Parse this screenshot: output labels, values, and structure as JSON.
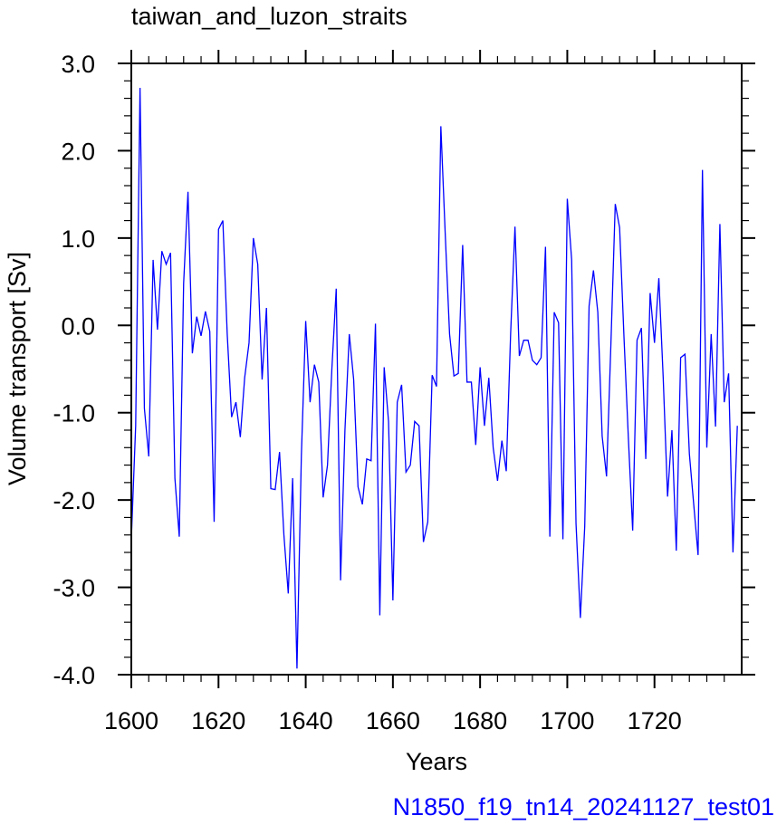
{
  "chart_data": {
    "type": "line",
    "title": "taiwan_and_luzon_straits",
    "xlabel": "Years",
    "ylabel": "Volume transport [Sv]",
    "caption": "N1850_f19_tn14_20241127_test01",
    "xlim": [
      1600,
      1740
    ],
    "ylim": [
      -4.0,
      3.0
    ],
    "x_ticks": [
      1600,
      1620,
      1640,
      1660,
      1680,
      1700,
      1720
    ],
    "x_tick_labels": [
      "1600",
      "1620",
      "1640",
      "1660",
      "1680",
      "1700",
      "1720"
    ],
    "y_ticks": [
      -4.0,
      -3.0,
      -2.0,
      -1.0,
      0.0,
      1.0,
      2.0,
      3.0
    ],
    "y_tick_labels": [
      "-4.0",
      "-3.0",
      "-2.0",
      "-1.0",
      "0.0",
      "1.0",
      "2.0",
      "3.0"
    ],
    "grid": false,
    "series": [
      {
        "color": "#0000ff",
        "x": [
          1600,
          1601,
          1602,
          1603,
          1604,
          1605,
          1606,
          1607,
          1608,
          1609,
          1610,
          1611,
          1612,
          1613,
          1614,
          1615,
          1616,
          1617,
          1618,
          1619,
          1620,
          1621,
          1622,
          1623,
          1624,
          1625,
          1626,
          1627,
          1628,
          1629,
          1630,
          1631,
          1632,
          1633,
          1634,
          1635,
          1636,
          1637,
          1638,
          1639,
          1640,
          1641,
          1642,
          1643,
          1644,
          1645,
          1646,
          1647,
          1648,
          1649,
          1650,
          1651,
          1652,
          1653,
          1654,
          1655,
          1656,
          1657,
          1658,
          1659,
          1660,
          1661,
          1662,
          1663,
          1664,
          1665,
          1666,
          1667,
          1668,
          1669,
          1670,
          1671,
          1672,
          1673,
          1674,
          1675,
          1676,
          1677,
          1678,
          1679,
          1680,
          1681,
          1682,
          1683,
          1684,
          1685,
          1686,
          1687,
          1688,
          1689,
          1690,
          1691,
          1692,
          1693,
          1694,
          1695,
          1696,
          1697,
          1698,
          1699,
          1700,
          1701,
          1702,
          1703,
          1704,
          1705,
          1706,
          1707,
          1708,
          1709,
          1710,
          1711,
          1712,
          1713,
          1714,
          1715,
          1716,
          1717,
          1718,
          1719,
          1720,
          1721,
          1722,
          1723,
          1724,
          1725,
          1726,
          1727,
          1728,
          1729,
          1730,
          1731,
          1732,
          1733,
          1734,
          1735,
          1736,
          1737,
          1738,
          1739
        ],
        "y": [
          -2.45,
          -1.15,
          2.72,
          -0.95,
          -1.5,
          0.75,
          -0.05,
          0.85,
          0.7,
          0.83,
          -1.75,
          -2.42,
          0.48,
          1.53,
          -0.32,
          0.1,
          -0.12,
          0.16,
          -0.07,
          -2.25,
          1.1,
          1.2,
          -0.1,
          -1.05,
          -0.88,
          -1.28,
          -0.6,
          -0.2,
          1.0,
          0.7,
          -0.62,
          0.2,
          -1.87,
          -1.88,
          -1.45,
          -2.4,
          -3.07,
          -1.75,
          -3.93,
          -1.5,
          0.05,
          -0.88,
          -0.45,
          -0.65,
          -1.97,
          -1.6,
          -0.5,
          0.42,
          -2.92,
          -1.2,
          -0.1,
          -0.62,
          -1.85,
          -2.05,
          -1.53,
          -1.55,
          0.02,
          -3.32,
          -0.48,
          -1.1,
          -3.15,
          -0.88,
          -0.68,
          -1.68,
          -1.6,
          -1.1,
          -1.15,
          -2.48,
          -2.25,
          -0.57,
          -0.7,
          2.28,
          1.05,
          -0.1,
          -0.58,
          -0.55,
          0.92,
          -0.65,
          -0.65,
          -1.37,
          -0.48,
          -1.15,
          -0.6,
          -1.4,
          -1.78,
          -1.32,
          -1.67,
          -0.1,
          1.13,
          -0.35,
          -0.17,
          -0.17,
          -0.4,
          -0.45,
          -0.37,
          0.9,
          -2.42,
          0.15,
          0.03,
          -2.45,
          1.45,
          0.75,
          -2.27,
          -3.35,
          -2.3,
          0.22,
          0.63,
          0.15,
          -1.27,
          -1.73,
          -0.22,
          1.39,
          1.12,
          -0.13,
          -1.28,
          -2.35,
          -0.17,
          -0.03,
          -1.53,
          0.37,
          -0.2,
          0.54,
          -0.6,
          -1.96,
          -1.2,
          -2.58,
          -0.37,
          -0.33,
          -1.47,
          -2.05,
          -2.63,
          1.78,
          -1.4,
          -0.1,
          -1.16,
          1.16,
          -0.88,
          -0.55,
          -2.6,
          -1.15
        ]
      }
    ]
  }
}
